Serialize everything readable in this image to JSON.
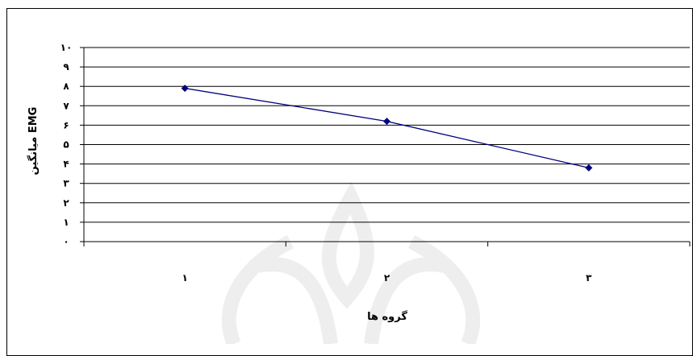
{
  "chart_data": {
    "type": "line",
    "categories": [
      "۱",
      "۲",
      "۳"
    ],
    "values": [
      7.9,
      6.2,
      3.8
    ],
    "series_color": "#000080",
    "marker": "diamond",
    "y_tick_labels": [
      "۰",
      "۱",
      "۲",
      "۳",
      "۴",
      "۵",
      "۶",
      "۷",
      "۸",
      "۹",
      "۱۰"
    ],
    "ylim": [
      0,
      10
    ],
    "ylabel": "میانگین EMG",
    "xlabel": "گروه ها",
    "grid": true
  }
}
